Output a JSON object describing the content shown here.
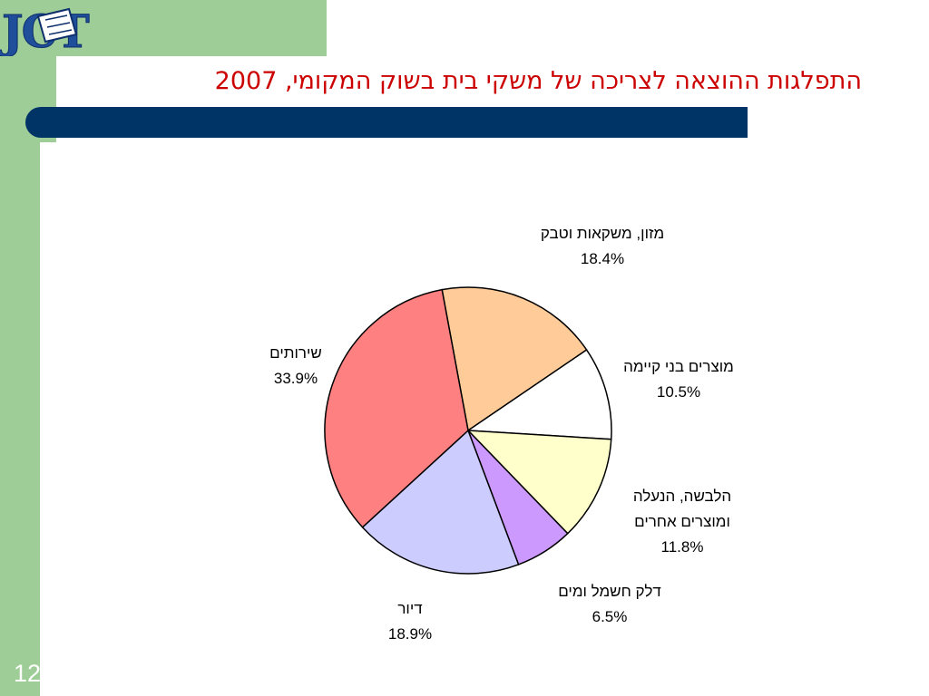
{
  "slide": {
    "logo_text": "JCT",
    "title": "התפלגות ההוצאה לצריכה של משקי בית בשוק המקומי, 2007",
    "page_number": "12"
  },
  "colors": {
    "side_band": "#9fcd97",
    "title_bar": "#003366",
    "title_text": "#cc0000",
    "logo": "#1f4e9a"
  },
  "chart_data": {
    "type": "pie",
    "title": "",
    "start_angle_deg": -10.5,
    "direction": "clockwise",
    "slices": [
      {
        "label_lines": [
          "מזון, משקאות וטבק"
        ],
        "value": 18.4,
        "value_label": "18.4%",
        "color": "#ffcc99"
      },
      {
        "label_lines": [
          "מוצרים בני קיימה"
        ],
        "value": 10.5,
        "value_label": "10.5%",
        "color": "#ffffff"
      },
      {
        "label_lines": [
          "הלבשה, הנעלה",
          "ומוצרים אחרים"
        ],
        "value": 11.8,
        "value_label": "11.8%",
        "color": "#ffffcc"
      },
      {
        "label_lines": [
          "דלק חשמל ומים"
        ],
        "value": 6.5,
        "value_label": "6.5%",
        "color": "#cc99ff"
      },
      {
        "label_lines": [
          "דיור"
        ],
        "value": 18.9,
        "value_label": "18.9%",
        "color": "#ccccff"
      },
      {
        "label_lines": [
          "שירותים"
        ],
        "value": 33.9,
        "value_label": "33.9%",
        "color": "#ff8080"
      }
    ]
  }
}
